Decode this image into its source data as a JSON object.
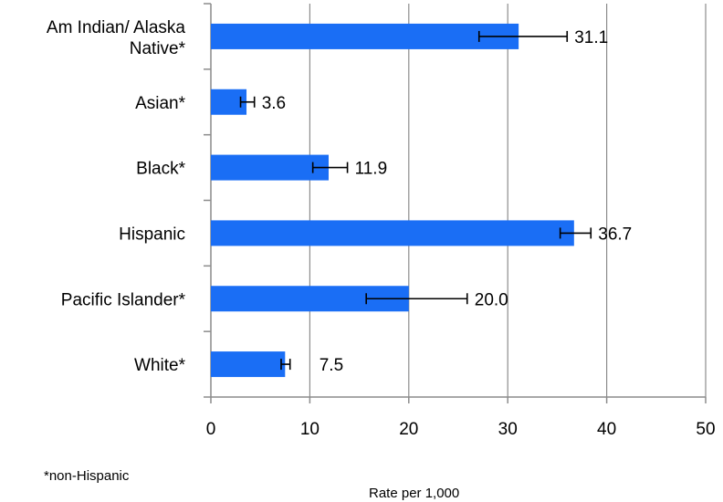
{
  "chart_data": {
    "type": "bar",
    "orientation": "horizontal",
    "categories": [
      "Am Indian/ Alaska Native*",
      "Asian*",
      "Black*",
      "Hispanic",
      "Pacific Islander*",
      "White*"
    ],
    "category_lines": [
      [
        "Am Indian/ Alaska",
        "Native*"
      ],
      [
        "Asian*"
      ],
      [
        "Black*"
      ],
      [
        "Hispanic"
      ],
      [
        "Pacific Islander*"
      ],
      [
        "White*"
      ]
    ],
    "values": [
      31.1,
      3.6,
      11.9,
      36.7,
      20.0,
      7.5
    ],
    "value_labels": [
      "31.1",
      "3.6",
      "11.9",
      "36.7",
      "20.0",
      "7.5"
    ],
    "error_low": [
      27.1,
      3.0,
      10.3,
      35.3,
      15.7,
      7.1
    ],
    "error_high": [
      36.0,
      4.4,
      13.8,
      38.4,
      25.9,
      8.0
    ],
    "xlim": [
      0,
      50
    ],
    "xticks": [
      "0",
      "10",
      "20",
      "30",
      "40",
      "50"
    ],
    "xlabel": "Rate per 1,000",
    "grid": "vertical",
    "bar_color": "#1a6ef5"
  },
  "footnote": "*non-Hispanic"
}
